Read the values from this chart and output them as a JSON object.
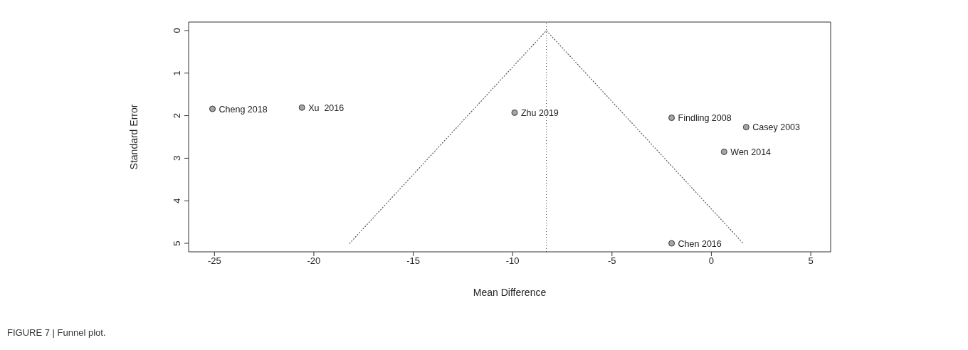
{
  "chart_data": {
    "type": "scatter",
    "xlabel": "Mean Difference",
    "ylabel": "Standard Error",
    "xlim": [
      -26.3,
      6.0
    ],
    "xticks": [
      -25,
      -20,
      -15,
      -10,
      -5,
      0,
      5
    ],
    "ylim": [
      5.2,
      -0.2
    ],
    "yticks": [
      0,
      1,
      2,
      3,
      4,
      5
    ],
    "series": [
      {
        "color": "#a6a6a6",
        "marker": "circle",
        "x": [
          -25.1,
          -20.6,
          -9.9,
          -2.0,
          1.75,
          0.64,
          -2.0
        ],
        "values": [
          1.84,
          1.81,
          1.93,
          2.05,
          2.27,
          2.85,
          5.0
        ]
      },
      {
        "type": "line",
        "color": "#555555",
        "line_style": "dotted",
        "marker": "none",
        "x": [
          -18.2,
          -8.3,
          1.6
        ],
        "values": [
          5.0,
          0.0,
          5.0
        ]
      }
    ],
    "ref_lines": [
      {
        "axis": "x",
        "value": -8.3,
        "color": "#333333",
        "line_style": "dotted"
      }
    ],
    "annotations": [
      {
        "text": "Cheng 2018",
        "x": -25.1,
        "y": 1.84
      },
      {
        "text": "Xu  2016",
        "x": -20.6,
        "y": 1.81
      },
      {
        "text": "Zhu 2019",
        "x": -9.9,
        "y": 1.93
      },
      {
        "text": "Findling 2008",
        "x": -2.0,
        "y": 2.05
      },
      {
        "text": "Casey 2003",
        "x": 1.75,
        "y": 2.27
      },
      {
        "text": "Wen 2014",
        "x": 0.64,
        "y": 2.85
      },
      {
        "text": "Chen 2016",
        "x": -2.0,
        "y": 5.0
      },
      "FIGURE 7 | Funnel plot."
    ]
  }
}
